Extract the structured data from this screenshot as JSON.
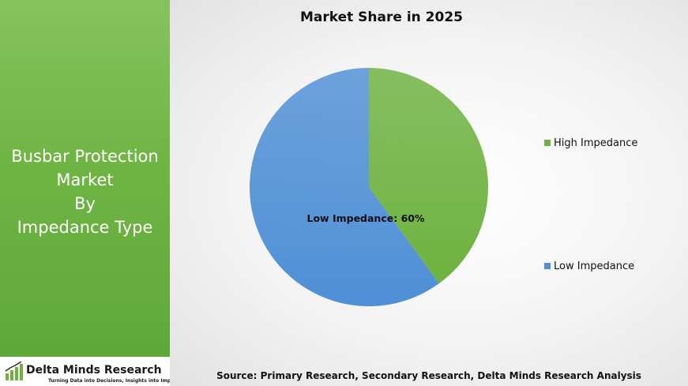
{
  "left_panel": {
    "title_lines": [
      "Busbar Protection",
      "Market",
      "By",
      "Impedance Type"
    ]
  },
  "logo": {
    "name": "Delta Minds Research",
    "tagline": "Turning Data into Decisions, Insights into Impact",
    "icon": "bar-chart-logo-icon"
  },
  "chart_data": {
    "type": "pie",
    "title": "Market Share in 2025",
    "slices": [
      {
        "label": "High Impedance",
        "value": 40,
        "color": "#6db23f"
      },
      {
        "label": "Low Impedance",
        "value": 60,
        "color": "#4f8fd6"
      }
    ],
    "data_labels": [
      {
        "slice": 1,
        "text": "Low Impedance: 60%"
      }
    ],
    "legend": {
      "placement": "right",
      "entries": [
        "High Impedance",
        "Low Impedance"
      ]
    }
  },
  "source": "Source: Primary Research, Secondary Research, Delta Minds Research Analysis"
}
